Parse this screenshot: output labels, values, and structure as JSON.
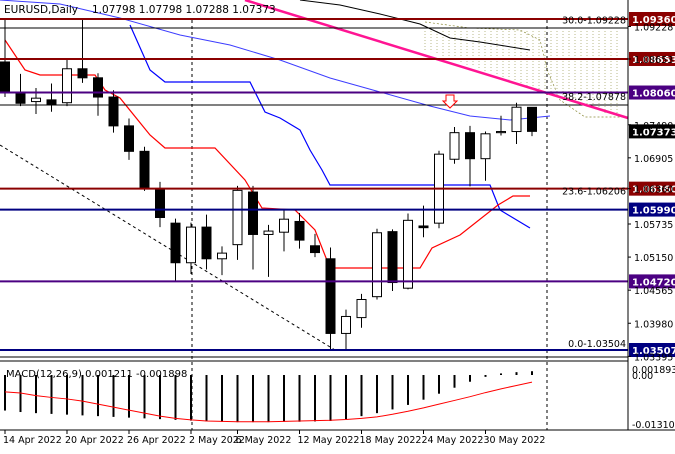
{
  "header": {
    "symbol_timeframe": "EURUSD,Daily",
    "ohlc": "1.07798 1.07798 1.07288 1.07373"
  },
  "macd_label": "MACD(12,26,9) 0.001211 -0.001898",
  "chart_data": {
    "type": "candlestick",
    "instrument": "EURUSD",
    "timeframe": "Daily",
    "price_axis": {
      "ticks": [
        1.09228,
        1.08653,
        1.0749,
        1.06905,
        1.0636,
        1.05735,
        1.0515,
        1.04565,
        1.0398,
        1.03395
      ],
      "labels": [
        "1.09228",
        "1.08653",
        "1.07490",
        "1.06905",
        "1.06360",
        "1.05735",
        "1.05150",
        "1.04565",
        "1.03980",
        "1.03395"
      ]
    },
    "x_axis": {
      "labels": [
        "14 Apr 2022",
        "20 Apr 2022",
        "26 Apr 2022",
        "2 May 2022",
        "6 May 2022",
        "12 May 2022",
        "18 May 2022",
        "24 May 2022",
        "30 May 2022"
      ],
      "label_index": [
        0,
        4,
        8,
        12,
        15,
        19,
        23,
        27,
        31
      ]
    },
    "candles": [
      {
        "o": 1.086,
        "h": 1.0936,
        "l": 1.0798,
        "c": 1.0806
      },
      {
        "o": 1.0805,
        "h": 1.0839,
        "l": 1.0782,
        "c": 1.0787
      },
      {
        "o": 1.079,
        "h": 1.0814,
        "l": 1.0768,
        "c": 1.0796
      },
      {
        "o": 1.0793,
        "h": 1.0822,
        "l": 1.0772,
        "c": 1.0784
      },
      {
        "o": 1.0788,
        "h": 1.0864,
        "l": 1.0782,
        "c": 1.0848
      },
      {
        "o": 1.0848,
        "h": 1.0936,
        "l": 1.0823,
        "c": 1.0832
      },
      {
        "o": 1.0832,
        "h": 1.084,
        "l": 1.0765,
        "c": 1.0798
      },
      {
        "o": 1.0798,
        "h": 1.081,
        "l": 1.0735,
        "c": 1.0747
      },
      {
        "o": 1.0747,
        "h": 1.076,
        "l": 1.0687,
        "c": 1.0702
      },
      {
        "o": 1.0702,
        "h": 1.071,
        "l": 1.0632,
        "c": 1.0637
      },
      {
        "o": 1.0634,
        "h": 1.0648,
        "l": 1.0568,
        "c": 1.0585
      },
      {
        "o": 1.0575,
        "h": 1.0583,
        "l": 1.0473,
        "c": 1.0505
      },
      {
        "o": 1.0505,
        "h": 1.0576,
        "l": 1.0485,
        "c": 1.0568
      },
      {
        "o": 1.0568,
        "h": 1.059,
        "l": 1.0493,
        "c": 1.0512
      },
      {
        "o": 1.0512,
        "h": 1.0534,
        "l": 1.0483,
        "c": 1.0522
      },
      {
        "o": 1.0537,
        "h": 1.0641,
        "l": 1.051,
        "c": 1.0633
      },
      {
        "o": 1.063,
        "h": 1.0641,
        "l": 1.0493,
        "c": 1.0555
      },
      {
        "o": 1.0555,
        "h": 1.0572,
        "l": 1.048,
        "c": 1.0561
      },
      {
        "o": 1.0559,
        "h": 1.06,
        "l": 1.0525,
        "c": 1.0582
      },
      {
        "o": 1.0578,
        "h": 1.0593,
        "l": 1.053,
        "c": 1.0545
      },
      {
        "o": 1.0535,
        "h": 1.0556,
        "l": 1.0515,
        "c": 1.0523
      },
      {
        "o": 1.0512,
        "h": 1.0532,
        "l": 1.035,
        "c": 1.038
      },
      {
        "o": 1.038,
        "h": 1.0422,
        "l": 1.035,
        "c": 1.041
      },
      {
        "o": 1.0408,
        "h": 1.045,
        "l": 1.039,
        "c": 1.044
      },
      {
        "o": 1.0445,
        "h": 1.0565,
        "l": 1.044,
        "c": 1.0558
      },
      {
        "o": 1.056,
        "h": 1.0564,
        "l": 1.0455,
        "c": 1.047
      },
      {
        "o": 1.046,
        "h": 1.0592,
        "l": 1.0458,
        "c": 1.058
      },
      {
        "o": 1.057,
        "h": 1.0606,
        "l": 1.055,
        "c": 1.0567
      },
      {
        "o": 1.0575,
        "h": 1.0703,
        "l": 1.0566,
        "c": 1.0697
      },
      {
        "o": 1.0688,
        "h": 1.0745,
        "l": 1.068,
        "c": 1.0735
      },
      {
        "o": 1.0735,
        "h": 1.0747,
        "l": 1.064,
        "c": 1.0689
      },
      {
        "o": 1.0689,
        "h": 1.0737,
        "l": 1.065,
        "c": 1.0733
      },
      {
        "o": 1.0735,
        "h": 1.0765,
        "l": 1.073,
        "c": 1.0737
      },
      {
        "o": 1.0737,
        "h": 1.0788,
        "l": 1.0715,
        "c": 1.078
      },
      {
        "o": 1.07798,
        "h": 1.07798,
        "l": 1.07288,
        "c": 1.07373
      }
    ],
    "horizontal_levels": [
      {
        "value": 1.0936,
        "label": "1.09360",
        "color": "#8b0000"
      },
      {
        "value": 1.08653,
        "label": "1.08653",
        "color": "#8b0000"
      },
      {
        "value": 1.0806,
        "label": "1.08060",
        "color": "#4b0082"
      },
      {
        "value": 1.0636,
        "label": "1.06360",
        "color": "#8b0000"
      },
      {
        "value": 1.0599,
        "label": "1.05990",
        "color": "#000080"
      },
      {
        "value": 1.0472,
        "label": "1.04720",
        "color": "#4b0082"
      },
      {
        "value": 1.03507,
        "label": "1.03507",
        "color": "#000080"
      }
    ],
    "current_price": {
      "value": 1.07373,
      "label": "1.07373"
    },
    "fibonacci_labels": [
      {
        "text": "30.0-1.09228",
        "value": 1.09228
      },
      {
        "text": "38.2-1.07878",
        "value": 1.07878
      },
      {
        "text": "23.6-1.06206",
        "value": 1.06206
      },
      {
        "text": "0.0-1.03504",
        "value": 1.03504
      }
    ],
    "macd": {
      "axis_labels": [
        "0.001893",
        "0.00",
        "-0.013102"
      ],
      "histogram": [
        -0.0095,
        -0.0099,
        -0.0102,
        -0.0104,
        -0.0106,
        -0.0108,
        -0.011,
        -0.0112,
        -0.0114,
        -0.0116,
        -0.0118,
        -0.012,
        -0.0122,
        -0.0124,
        -0.0125,
        -0.0126,
        -0.0126,
        -0.0126,
        -0.0125,
        -0.0125,
        -0.0124,
        -0.0123,
        -0.0118,
        -0.011,
        -0.0102,
        -0.0092,
        -0.008,
        -0.0066,
        -0.005,
        -0.0034,
        -0.0018,
        -0.0005,
        0.0005,
        0.0009,
        0.0012
      ],
      "signal": [
        -0.0045,
        -0.0048,
        -0.0055,
        -0.006,
        -0.0064,
        -0.007,
        -0.0078,
        -0.0086,
        -0.0094,
        -0.0102,
        -0.011,
        -0.0116,
        -0.012,
        -0.0123,
        -0.0124,
        -0.0125,
        -0.0125,
        -0.0125,
        -0.0124,
        -0.0123,
        -0.0122,
        -0.0121,
        -0.0119,
        -0.0116,
        -0.0112,
        -0.0105,
        -0.0097,
        -0.0088,
        -0.0078,
        -0.0068,
        -0.0058,
        -0.0047,
        -0.0037,
        -0.0028,
        -0.0019
      ]
    }
  }
}
